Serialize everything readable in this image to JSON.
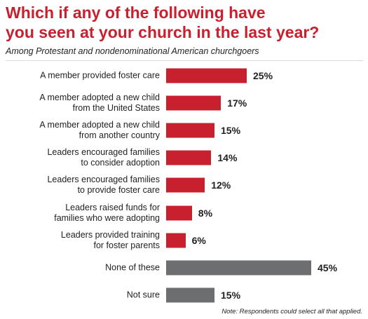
{
  "chart_data": {
    "type": "bar",
    "title": "Which if any of the following have\nyou seen at your church in the last year?",
    "subtitle": "Among Protestant and nondenominational American churchgoers",
    "categories": [
      "A member provided foster care",
      "A member adopted a new child\nfrom the United States",
      "A member adopted a new child\nfrom another country",
      "Leaders encouraged families\nto consider adoption",
      "Leaders encouraged families\nto provide foster care",
      "Leaders raised funds for\nfamilies who were adopting",
      "Leaders provided training\nfor foster parents",
      "None of these",
      "Not sure"
    ],
    "values": [
      25,
      17,
      15,
      14,
      12,
      8,
      6,
      45,
      15
    ],
    "value_labels": [
      "25%",
      "17%",
      "15%",
      "14%",
      "12%",
      "8%",
      "6%",
      "45%",
      "15%"
    ],
    "colors": [
      "#c8202f",
      "#c8202f",
      "#c8202f",
      "#c8202f",
      "#c8202f",
      "#c8202f",
      "#c8202f",
      "#6d6e70",
      "#6d6e70"
    ],
    "note": "Note: Respondents could select all that applied."
  }
}
